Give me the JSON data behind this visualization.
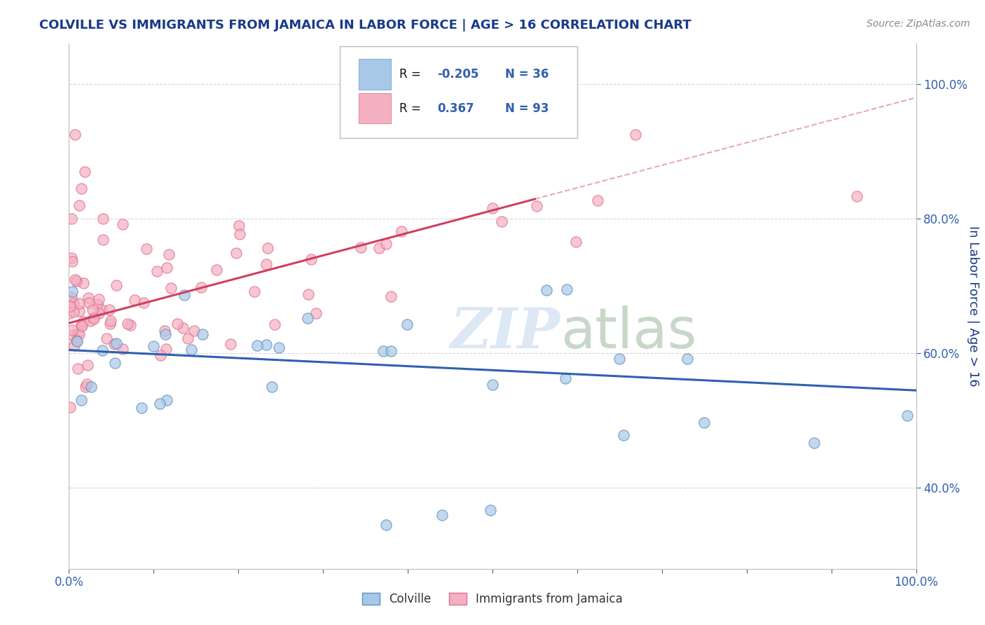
{
  "title": "COLVILLE VS IMMIGRANTS FROM JAMAICA IN LABOR FORCE | AGE > 16 CORRELATION CHART",
  "source_text": "Source: ZipAtlas.com",
  "ylabel": "In Labor Force | Age > 16",
  "xlim": [
    0.0,
    1.0
  ],
  "ylim": [
    0.28,
    1.06
  ],
  "xticks": [
    0.0,
    0.1,
    0.2,
    0.3,
    0.4,
    0.5,
    0.6,
    0.7,
    0.8,
    0.9,
    1.0
  ],
  "yticks": [
    0.4,
    0.6,
    0.8,
    1.0
  ],
  "colville_R": -0.205,
  "colville_N": 36,
  "jamaica_R": 0.367,
  "jamaica_N": 93,
  "colville_color": "#a8c8e8",
  "jamaica_color": "#f4b0c0",
  "colville_edge_color": "#6090c0",
  "jamaica_edge_color": "#e07090",
  "colville_line_color": "#3060b0",
  "jamaica_line_color": "#d04060",
  "background_color": "#ffffff",
  "watermark_color": "#dce8f4",
  "grid_color": "#cccccc",
  "title_color": "#1a3a8a",
  "axis_label_color": "#1a3a8a",
  "tick_color": "#3060b0",
  "legend_R_color": "#000000",
  "legend_val_color": "#3060b0"
}
